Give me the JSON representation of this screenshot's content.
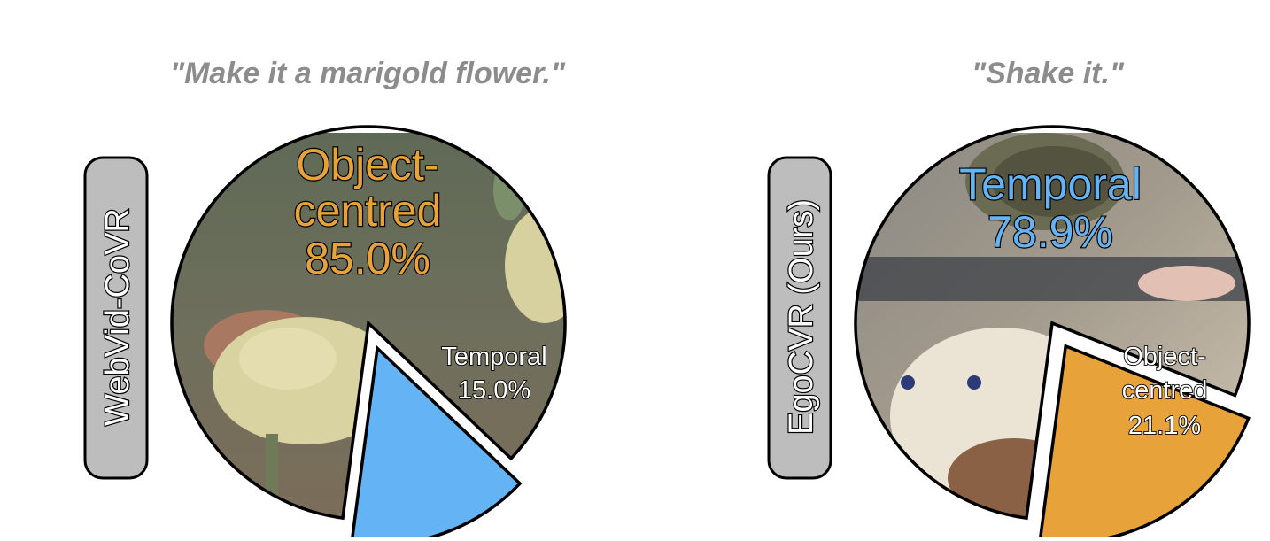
{
  "chart_data": [
    {
      "type": "pie",
      "title": "\"Make it a marigold flower.\"",
      "dataset_label": "WebVid-CoVR",
      "slices": [
        {
          "name": "Object-centred",
          "lines": [
            "Object-",
            "centred"
          ],
          "value": 85.0,
          "value_label": "85.0%",
          "color": "#e8a23a",
          "exploded": false,
          "background": "marigold-photo"
        },
        {
          "name": "Temporal",
          "lines": [
            "Temporal"
          ],
          "value": 15.0,
          "value_label": "15.0%",
          "color": "#63b3f5",
          "exploded": true
        }
      ],
      "start_angle_deg": 97.5
    },
    {
      "type": "pie",
      "title": "\"Shake it.\"",
      "dataset_label": "EgoCVR (Ours)",
      "slices": [
        {
          "name": "Temporal",
          "lines": [
            "Temporal"
          ],
          "value": 78.9,
          "value_label": "78.9%",
          "color": "#63b3f5",
          "exploded": false,
          "background": "egocentric-photo"
        },
        {
          "name": "Object-centred",
          "lines": [
            "Object-",
            "centred"
          ],
          "value": 21.1,
          "value_label": "21.1%",
          "color": "#e8a23a",
          "exploded": true
        }
      ],
      "start_angle_deg": 97.5
    }
  ],
  "colors": {
    "title_text": "#8c8c8c",
    "temporal": "#63b3f5",
    "object_centred": "#e8a23a",
    "label_pill": "#bdbdbd",
    "outline": "#000000"
  }
}
